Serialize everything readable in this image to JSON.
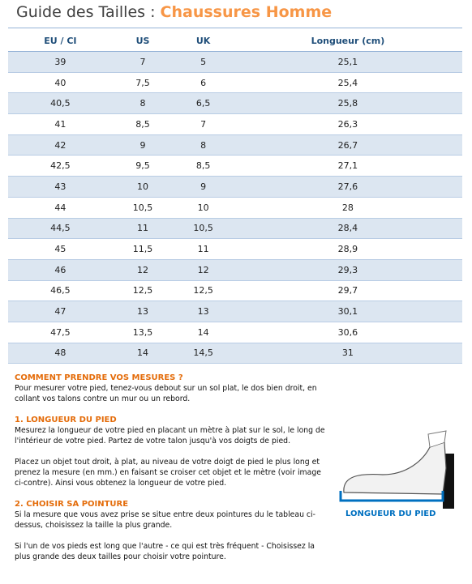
{
  "header": {
    "title": "Guide des Tailles :",
    "subtitle": "Chaussures Homme"
  },
  "table": {
    "columns": [
      "EU / CI",
      "US",
      "UK",
      "Longueur (cm)"
    ],
    "rows": [
      [
        "39",
        "7",
        "5",
        "25,1"
      ],
      [
        "40",
        "7,5",
        "6",
        "25,4"
      ],
      [
        "40,5",
        "8",
        "6,5",
        "25,8"
      ],
      [
        "41",
        "8,5",
        "7",
        "26,3"
      ],
      [
        "42",
        "9",
        "8",
        "26,7"
      ],
      [
        "42,5",
        "9,5",
        "8,5",
        "27,1"
      ],
      [
        "43",
        "10",
        "9",
        "27,6"
      ],
      [
        "44",
        "10,5",
        "10",
        "28"
      ],
      [
        "44,5",
        "11",
        "10,5",
        "28,4"
      ],
      [
        "45",
        "11,5",
        "11",
        "28,9"
      ],
      [
        "46",
        "12",
        "12",
        "29,3"
      ],
      [
        "46,5",
        "12,5",
        "12,5",
        "29,7"
      ],
      [
        "47",
        "13",
        "13",
        "30,1"
      ],
      [
        "47,5",
        "13,5",
        "14",
        "30,6"
      ],
      [
        "48",
        "14",
        "14,5",
        "31"
      ]
    ]
  },
  "instructions": [
    {
      "heading": "COMMENT PRENDRE VOS MESURES ?",
      "paragraphs": [
        "Pour mesurer votre pied, tenez-vous debout sur un sol plat, le dos bien droit, en collant vos talons contre un mur ou un rebord."
      ]
    },
    {
      "heading": "1. LONGUEUR DU PIED",
      "paragraphs": [
        "Mesurez la longueur de votre pied en placant un mètre à plat sur le sol, le long de l'intérieur de votre pied. Partez de votre talon jusqu'à vos doigts de pied.",
        "Placez un objet tout droit, à plat, au niveau de votre doigt de pied le plus long et prenez la mesure (en mm.) en faisant se croiser cet objet et le mètre (voir image ci-contre). Ainsi vous obtenez la longueur de votre pied."
      ]
    },
    {
      "heading": "2. CHOISIR SA POINTURE",
      "paragraphs": [
        "Si la mesure que vous avez prise se situe entre deux pointures du le tableau ci-dessus, choisissez la taille la plus grande.",
        "Si l'un de vos pieds est long que l'autre - ce qui est très fréquent - Choisissez la plus grande des deux tailles pour choisir votre pointure."
      ]
    }
  ],
  "figure_label": "LONGUEUR DU PIED"
}
